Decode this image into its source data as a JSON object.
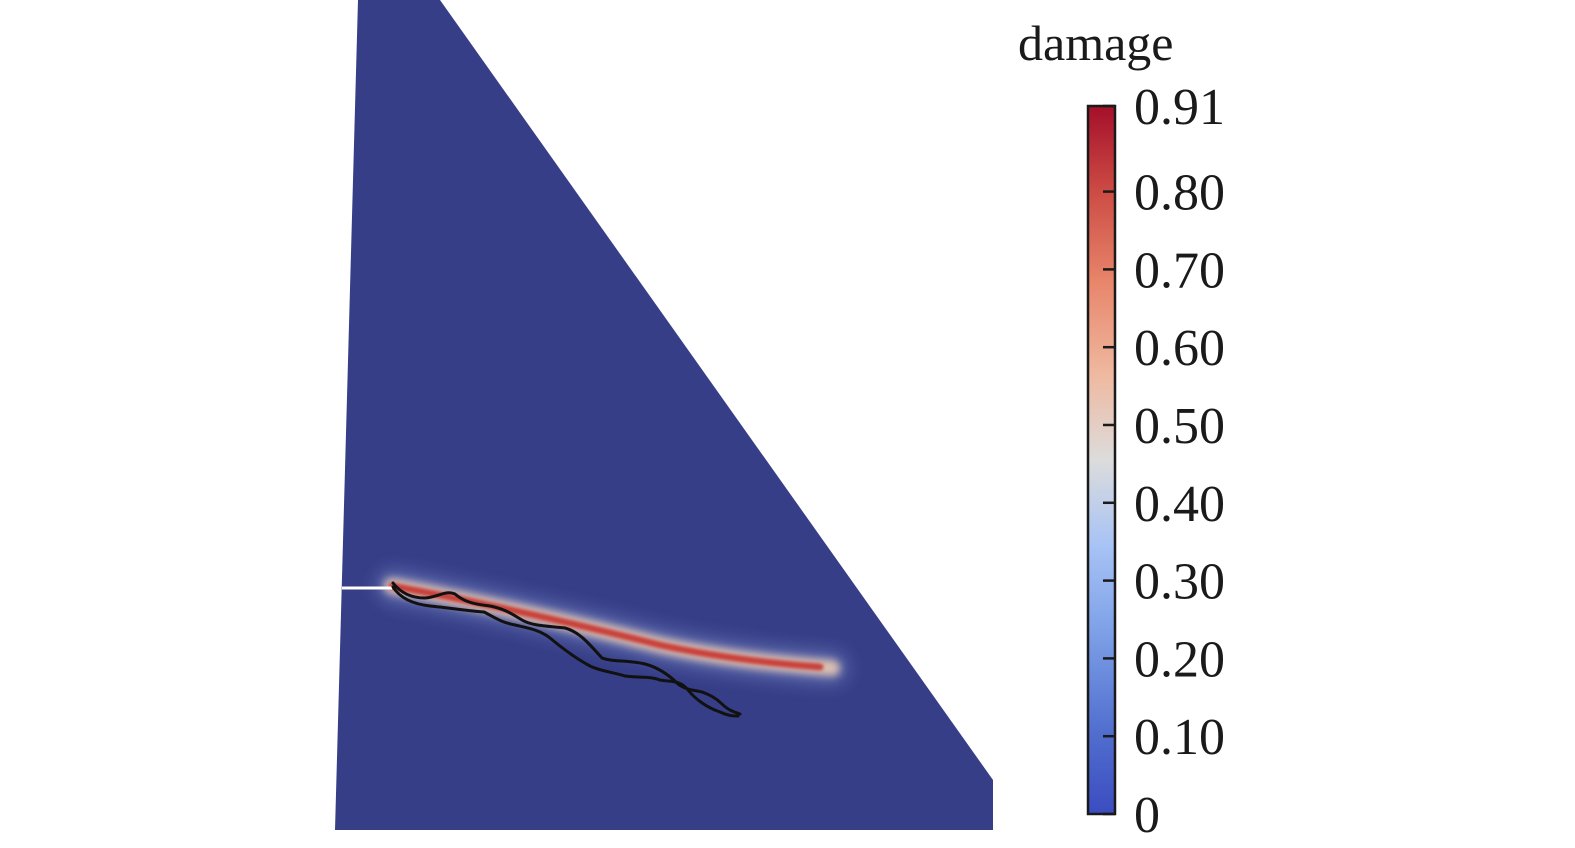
{
  "legend": {
    "title": "damage",
    "min": 0,
    "max": 0.91,
    "ticks": [
      {
        "value": 0.91,
        "label": "0.91"
      },
      {
        "value": 0.8,
        "label": "0.80"
      },
      {
        "value": 0.7,
        "label": "0.70"
      },
      {
        "value": 0.6,
        "label": "0.60"
      },
      {
        "value": 0.5,
        "label": "0.50"
      },
      {
        "value": 0.4,
        "label": "0.40"
      },
      {
        "value": 0.3,
        "label": "0.30"
      },
      {
        "value": 0.2,
        "label": "0.20"
      },
      {
        "value": 0.1,
        "label": "0.10"
      },
      {
        "value": 0,
        "label": "0"
      }
    ]
  },
  "colors": {
    "domain": "#363e87",
    "colormap_low": "#3b4cc0",
    "colormap_mid": "#dddddd",
    "colormap_high": "#b40426",
    "crack_band": "#c8413a",
    "experimental_crack_lines": "#111111",
    "notch": "#ffffff"
  }
}
